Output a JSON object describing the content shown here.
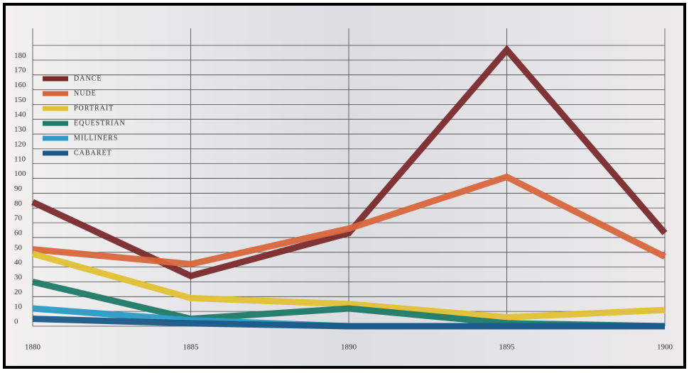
{
  "chart_data": {
    "type": "line",
    "x": [
      1880,
      1885,
      1890,
      1895,
      1900
    ],
    "xlim": [
      1880,
      1900
    ],
    "xticks": [
      1880,
      1885,
      1890,
      1895,
      1900
    ],
    "ylim": [
      0,
      190
    ],
    "yticks": [
      0,
      10,
      20,
      30,
      40,
      50,
      60,
      70,
      80,
      90,
      100,
      110,
      120,
      130,
      140,
      150,
      160,
      170,
      180
    ],
    "grid": true,
    "legend": "upper left",
    "series": [
      {
        "name": "DANCE",
        "color": "#7b2a2c",
        "values": [
          84,
          34,
          63,
          187,
          63
        ]
      },
      {
        "name": "NUDE",
        "color": "#d8663c",
        "values": [
          52,
          42,
          66,
          101,
          47
        ]
      },
      {
        "name": "PORTRAIT",
        "color": "#e2c134",
        "values": [
          49,
          19,
          15,
          6,
          11
        ]
      },
      {
        "name": "EQUESTRIAN",
        "color": "#1f7a68",
        "values": [
          30,
          5,
          12,
          2,
          0
        ]
      },
      {
        "name": "MILLINERS",
        "color": "#2c9bc6",
        "values": [
          12,
          4,
          0,
          0,
          0
        ]
      },
      {
        "name": "CABARET",
        "color": "#1b5a88",
        "values": [
          5,
          2,
          0,
          0,
          0
        ]
      }
    ]
  }
}
